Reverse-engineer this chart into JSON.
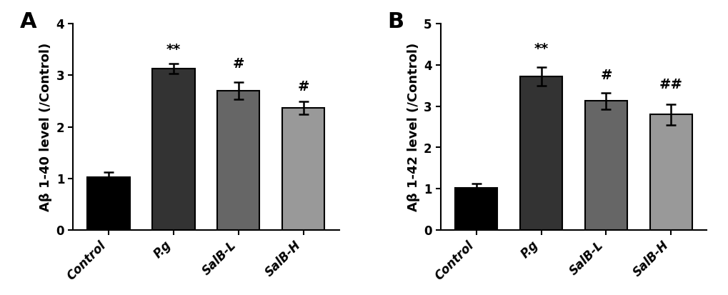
{
  "panel_A": {
    "label": "A",
    "categories": [
      "Control",
      "P.g",
      "SalB-L",
      "SalB-H"
    ],
    "values": [
      1.02,
      3.13,
      2.7,
      2.37
    ],
    "errors": [
      0.1,
      0.1,
      0.17,
      0.12
    ],
    "bar_colors": [
      "#000000",
      "#333333",
      "#666666",
      "#999999"
    ],
    "ylabel": "Aβ 1-40 level (/Control)",
    "ylim": [
      0,
      4
    ],
    "yticks": [
      0,
      1,
      2,
      3,
      4
    ],
    "annotations": [
      "",
      "**",
      "#",
      "#"
    ],
    "annot_offsets": [
      0.0,
      0.13,
      0.22,
      0.16
    ]
  },
  "panel_B": {
    "label": "B",
    "categories": [
      "Control",
      "P.g",
      "SalB-L",
      "SalB-H"
    ],
    "values": [
      1.02,
      3.72,
      3.13,
      2.8
    ],
    "errors": [
      0.1,
      0.22,
      0.2,
      0.25
    ],
    "bar_colors": [
      "#000000",
      "#333333",
      "#666666",
      "#999999"
    ],
    "ylabel": "Aβ 1-42 level (/Control)",
    "ylim": [
      0,
      5
    ],
    "yticks": [
      0,
      1,
      2,
      3,
      4,
      5
    ],
    "annotations": [
      "",
      "**",
      "#",
      "##"
    ],
    "annot_offsets": [
      0.0,
      0.28,
      0.26,
      0.3
    ]
  },
  "bar_width": 0.65,
  "edgecolor": "#000000",
  "linewidth": 1.5,
  "capsize": 5,
  "error_linewidth": 1.8,
  "label_fontsize": 13,
  "tick_fontsize": 12,
  "annot_fontsize": 14,
  "panel_label_fontsize": 22,
  "background_color": "#ffffff"
}
